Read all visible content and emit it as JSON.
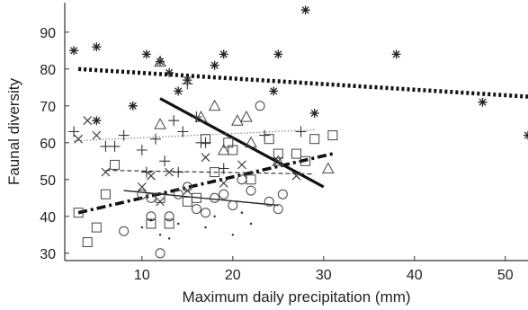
{
  "chart_data": {
    "type": "scatter",
    "title": "",
    "xlabel": "Maximum daily precipitation (mm)",
    "ylabel": "Faunal diversity",
    "xlim": [
      1.5,
      52.5
    ],
    "ylim": [
      28,
      98
    ],
    "xticks": [
      10,
      20,
      30,
      40,
      50
    ],
    "yticks": [
      30,
      40,
      50,
      60,
      70,
      80,
      90
    ],
    "grid": false,
    "series": [
      {
        "marker": "asterisk",
        "points": [
          [
            2.5,
            85
          ],
          [
            5,
            86
          ],
          [
            10.5,
            84
          ],
          [
            12,
            82
          ],
          [
            19,
            84
          ],
          [
            25,
            84
          ],
          [
            28,
            96
          ],
          [
            38,
            84
          ],
          [
            47.5,
            71
          ],
          [
            52.5,
            62
          ],
          [
            5,
            66
          ],
          [
            9,
            70
          ],
          [
            14,
            74
          ],
          [
            24.5,
            74
          ],
          [
            29,
            68
          ],
          [
            13,
            79
          ],
          [
            15,
            77
          ],
          [
            18,
            81
          ]
        ],
        "fit": {
          "x": [
            3,
            52.5
          ],
          "y": [
            80,
            72.5
          ],
          "style": "heavy-dotted"
        }
      },
      {
        "marker": "triangle",
        "points": [
          [
            12,
            82
          ],
          [
            16.5,
            67
          ],
          [
            18,
            70
          ],
          [
            20.5,
            66
          ],
          [
            21.5,
            67
          ],
          [
            12,
            65
          ],
          [
            30.5,
            53
          ],
          [
            25,
            55
          ],
          [
            22,
            60
          ],
          [
            19,
            58
          ]
        ],
        "fit": {
          "x": [
            12,
            30
          ],
          "y": [
            72,
            48
          ],
          "style": "solid-thick"
        }
      },
      {
        "marker": "plus",
        "points": [
          [
            2.5,
            63
          ],
          [
            6,
            59
          ],
          [
            7,
            59
          ],
          [
            8,
            62
          ],
          [
            10,
            58
          ],
          [
            11.5,
            61
          ],
          [
            13.5,
            66
          ],
          [
            14.5,
            63
          ],
          [
            15,
            76
          ],
          [
            16,
            67
          ],
          [
            17,
            60
          ],
          [
            23.5,
            62
          ],
          [
            27.5,
            63
          ],
          [
            10.5,
            52
          ],
          [
            12.5,
            55
          ],
          [
            14,
            52
          ],
          [
            16.5,
            60
          ],
          [
            19,
            53
          ]
        ],
        "fit": {
          "x": [
            2.5,
            29
          ],
          "y": [
            60.5,
            63.5
          ],
          "style": "light-dotted"
        }
      },
      {
        "marker": "square",
        "points": [
          [
            3,
            41
          ],
          [
            5,
            37
          ],
          [
            4,
            33
          ],
          [
            6,
            46
          ],
          [
            7,
            54
          ],
          [
            11,
            38
          ],
          [
            12,
            45
          ],
          [
            13,
            38
          ],
          [
            15,
            44
          ],
          [
            17,
            61
          ],
          [
            19.5,
            60
          ],
          [
            20,
            58
          ],
          [
            22,
            50
          ],
          [
            24,
            61
          ],
          [
            25,
            57
          ],
          [
            27,
            57
          ],
          [
            29,
            61
          ],
          [
            31,
            62
          ],
          [
            28,
            55
          ],
          [
            16,
            45
          ],
          [
            18,
            52
          ]
        ],
        "fit": {
          "x": [
            3,
            31
          ],
          "y": [
            41,
            57
          ],
          "style": "dash-dot-thick"
        }
      },
      {
        "marker": "cross",
        "points": [
          [
            3,
            61
          ],
          [
            4,
            66
          ],
          [
            5,
            62
          ],
          [
            6,
            52
          ],
          [
            10,
            48
          ],
          [
            11,
            51
          ],
          [
            13,
            52
          ],
          [
            17,
            56
          ],
          [
            19,
            49
          ],
          [
            21,
            54
          ],
          [
            25,
            55
          ],
          [
            27,
            51
          ],
          [
            12,
            44
          ],
          [
            15,
            47
          ]
        ],
        "fit": {
          "x": [
            6,
            29
          ],
          "y": [
            52.5,
            51.5
          ],
          "style": "dashed"
        }
      },
      {
        "marker": "circle",
        "points": [
          [
            8,
            36
          ],
          [
            10,
            46
          ],
          [
            11,
            45
          ],
          [
            12,
            30
          ],
          [
            13,
            40
          ],
          [
            14,
            46
          ],
          [
            15,
            48
          ],
          [
            16,
            42
          ],
          [
            17,
            41
          ],
          [
            18,
            45
          ],
          [
            19,
            46
          ],
          [
            20,
            43
          ],
          [
            21,
            50
          ],
          [
            22,
            47
          ],
          [
            23,
            70
          ],
          [
            24,
            44
          ],
          [
            25,
            42
          ],
          [
            25.5,
            46
          ],
          [
            11,
            40
          ]
        ],
        "fit": {
          "x": [
            8,
            25
          ],
          "y": [
            47,
            43
          ],
          "style": "solid-thin"
        }
      },
      {
        "marker": "dot",
        "points": [
          [
            10,
            37
          ],
          [
            11,
            39
          ],
          [
            12,
            35
          ],
          [
            13,
            34
          ],
          [
            14,
            38
          ],
          [
            17,
            37
          ],
          [
            18,
            40
          ],
          [
            20,
            35
          ],
          [
            21,
            41
          ],
          [
            22,
            38
          ]
        ],
        "fit": null
      }
    ]
  }
}
